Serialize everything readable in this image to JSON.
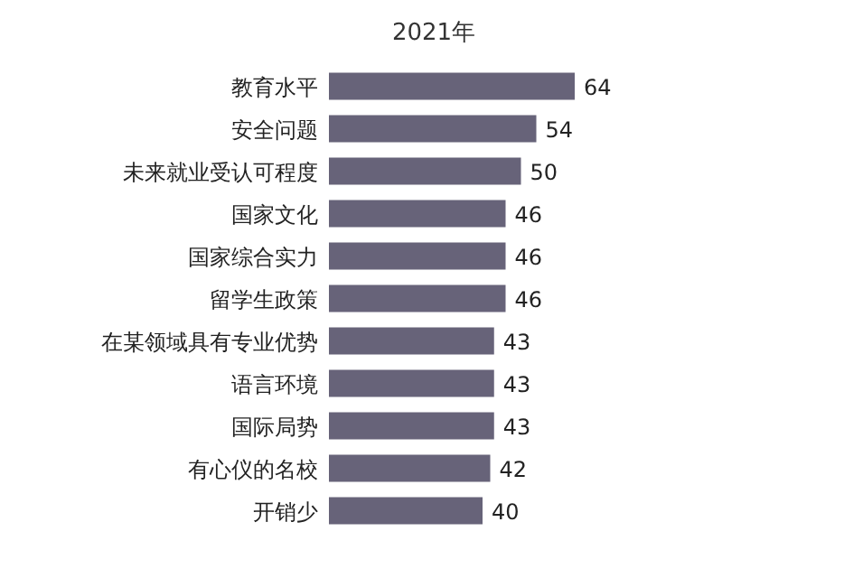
{
  "chart_data": {
    "type": "bar",
    "orientation": "horizontal",
    "title": "2021年",
    "data_labels": true,
    "categories": [
      "教育水平",
      "安全问题",
      "未来就业受认可程度",
      "国家文化",
      "国家综合实力",
      "留学生政策",
      "在某领域具有专业优势",
      "语言环境",
      "国际局势",
      "有心仪的名校",
      "开销少"
    ],
    "values": [
      64,
      54,
      50,
      46,
      46,
      46,
      43,
      43,
      43,
      42,
      40
    ],
    "color": "#676379"
  }
}
